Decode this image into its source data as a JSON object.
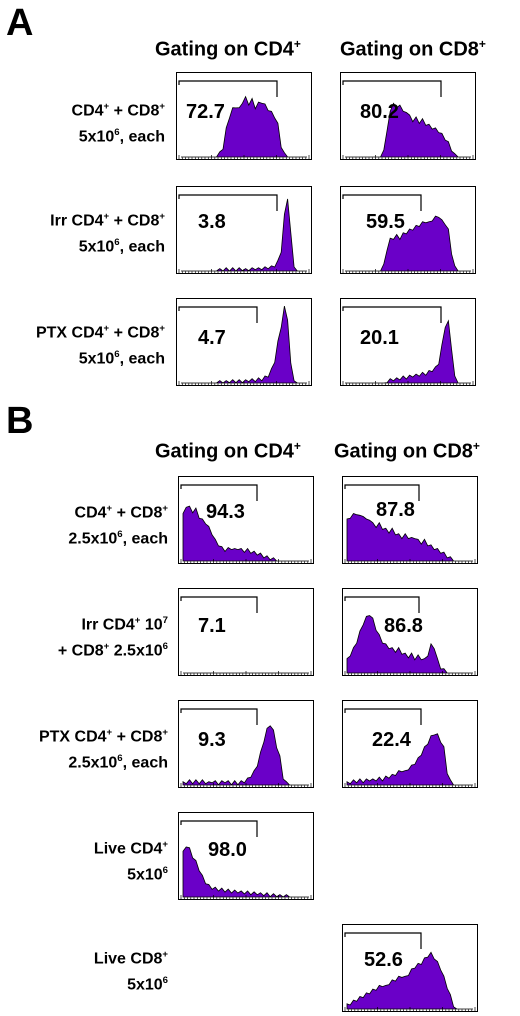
{
  "panels": [
    {
      "letter": "A",
      "col_heads": [
        {
          "text": "Gating on CD4",
          "sup": "+"
        },
        {
          "text": "Gating on CD8",
          "sup": "+"
        }
      ],
      "rows": [
        {
          "line1": [
            {
              "t": "CD4"
            },
            {
              "s": "+"
            },
            {
              "t": " + CD8"
            },
            {
              "s": "+"
            }
          ],
          "line2": [
            {
              "t": "5x10"
            },
            {
              "s": "6"
            },
            {
              "t": ", each"
            }
          ]
        },
        {
          "line1": [
            {
              "t": "Irr CD4"
            },
            {
              "s": "+"
            },
            {
              "t": " + CD8"
            },
            {
              "s": "+"
            }
          ],
          "line2": [
            {
              "t": "5x10"
            },
            {
              "s": "6"
            },
            {
              "t": ", each"
            }
          ]
        },
        {
          "line1": [
            {
              "t": "PTX CD4"
            },
            {
              "s": "+"
            },
            {
              "t": " + CD8"
            },
            {
              "s": "+"
            }
          ],
          "line2": [
            {
              "t": "5x10"
            },
            {
              "s": "6"
            },
            {
              "t": ", each"
            }
          ]
        }
      ]
    },
    {
      "letter": "B",
      "col_heads": [
        {
          "text": "Gating on CD4",
          "sup": "+"
        },
        {
          "text": "Gating on CD8",
          "sup": "+"
        }
      ],
      "rows": [
        {
          "line1": [
            {
              "t": "CD4"
            },
            {
              "s": "+"
            },
            {
              "t": " + CD8"
            },
            {
              "s": "+"
            }
          ],
          "line2": [
            {
              "t": "2.5x10"
            },
            {
              "s": "6"
            },
            {
              "t": ", each"
            }
          ]
        },
        {
          "line1": [
            {
              "t": "Irr CD4"
            },
            {
              "s": "+"
            },
            {
              "t": " 10"
            },
            {
              "s": "7"
            }
          ],
          "line2": [
            {
              "t": "+ CD8"
            },
            {
              "s": "+"
            },
            {
              "t": " 2.5x10"
            },
            {
              "s": "6"
            }
          ]
        },
        {
          "line1": [
            {
              "t": "PTX CD4"
            },
            {
              "s": "+"
            },
            {
              "t": " + CD8"
            },
            {
              "s": "+"
            }
          ],
          "line2": [
            {
              "t": "2.5x10"
            },
            {
              "s": "6"
            },
            {
              "t": ", each"
            }
          ]
        },
        {
          "line1": [
            {
              "t": "Live CD4"
            },
            {
              "s": "+"
            }
          ],
          "line2": [
            {
              "t": "5x10"
            },
            {
              "s": "6"
            }
          ]
        },
        {
          "line1": [
            {
              "t": "Live CD8"
            },
            {
              "s": "+"
            }
          ],
          "line2": [
            {
              "t": "5x10"
            },
            {
              "s": "6"
            }
          ]
        }
      ]
    }
  ],
  "colors": {
    "fill": "#6a00c8",
    "stroke": "#000000"
  },
  "chart_data": [
    {
      "panel": "A",
      "row": 0,
      "col": 0,
      "type": "area",
      "gate_percent": 72.7,
      "series": [
        0,
        0,
        0,
        0,
        0,
        0,
        0,
        0,
        0,
        0,
        0,
        0,
        4,
        10,
        30,
        44,
        52,
        55,
        52,
        60,
        64,
        58,
        62,
        54,
        58,
        60,
        56,
        52,
        48,
        44,
        35,
        12,
        3,
        0,
        0,
        0,
        0,
        0,
        0,
        0
      ]
    },
    {
      "panel": "A",
      "row": 0,
      "col": 1,
      "type": "area",
      "gate_percent": 80.2,
      "series": [
        0,
        0,
        0,
        0,
        0,
        0,
        0,
        0,
        0,
        0,
        0,
        0,
        6,
        30,
        48,
        60,
        52,
        58,
        48,
        50,
        44,
        40,
        42,
        38,
        40,
        36,
        34,
        32,
        30,
        28,
        24,
        20,
        15,
        8,
        2,
        0,
        0,
        0,
        0,
        0
      ]
    },
    {
      "panel": "A",
      "row": 1,
      "col": 0,
      "type": "area",
      "gate_percent": 3.8,
      "series": [
        0,
        0,
        0,
        0,
        0,
        0,
        0,
        0,
        0,
        0,
        0,
        0,
        1,
        1,
        2,
        1,
        2,
        1,
        2,
        2,
        1,
        2,
        2,
        3,
        2,
        3,
        3,
        4,
        4,
        6,
        10,
        22,
        60,
        80,
        40,
        6,
        0,
        0,
        0,
        0
      ]
    },
    {
      "panel": "A",
      "row": 1,
      "col": 1,
      "type": "area",
      "gate_percent": 59.5,
      "series": [
        0,
        0,
        0,
        0,
        0,
        0,
        0,
        0,
        0,
        0,
        0,
        0,
        6,
        24,
        34,
        36,
        38,
        36,
        40,
        42,
        44,
        46,
        48,
        50,
        52,
        54,
        52,
        56,
        58,
        60,
        54,
        52,
        44,
        20,
        4,
        0,
        0,
        0,
        0,
        0
      ]
    },
    {
      "panel": "A",
      "row": 2,
      "col": 0,
      "type": "area",
      "gate_percent": 4.7,
      "series": [
        0,
        0,
        0,
        0,
        0,
        0,
        0,
        0,
        0,
        0,
        0,
        0,
        1,
        1,
        1,
        2,
        2,
        2,
        2,
        2,
        2,
        3,
        3,
        3,
        4,
        4,
        6,
        8,
        14,
        24,
        44,
        62,
        82,
        70,
        20,
        4,
        0,
        0,
        0,
        0
      ]
    },
    {
      "panel": "A",
      "row": 2,
      "col": 1,
      "type": "area",
      "gate_percent": 20.1,
      "series": [
        0,
        0,
        0,
        0,
        0,
        0,
        0,
        0,
        0,
        0,
        0,
        0,
        0,
        2,
        3,
        4,
        4,
        5,
        6,
        6,
        7,
        8,
        8,
        9,
        10,
        10,
        12,
        14,
        16,
        22,
        40,
        62,
        66,
        38,
        6,
        0,
        0,
        0,
        0,
        0
      ]
    },
    {
      "panel": "B",
      "row": 0,
      "col": 0,
      "type": "area",
      "gate_percent": 94.3,
      "series": [
        50,
        60,
        58,
        54,
        56,
        48,
        44,
        42,
        36,
        30,
        22,
        18,
        14,
        12,
        13,
        14,
        12,
        14,
        12,
        11,
        12,
        10,
        9,
        8,
        7,
        5,
        4,
        3,
        2,
        1,
        0,
        0,
        0,
        0,
        0,
        0,
        0,
        0,
        0,
        0
      ]
    },
    {
      "panel": "B",
      "row": 0,
      "col": 1,
      "type": "area",
      "gate_percent": 87.8,
      "series": [
        44,
        48,
        50,
        52,
        48,
        50,
        44,
        46,
        40,
        38,
        40,
        36,
        34,
        32,
        34,
        30,
        28,
        26,
        28,
        26,
        24,
        26,
        22,
        20,
        22,
        18,
        16,
        14,
        12,
        10,
        8,
        5,
        3,
        1,
        0,
        0,
        0,
        0,
        0,
        0
      ]
    },
    {
      "panel": "B",
      "row": 1,
      "col": 0,
      "type": "area",
      "gate_percent": 7.1,
      "series": [
        0,
        0,
        0,
        0,
        0,
        0,
        0,
        0,
        0,
        0,
        0,
        0,
        0,
        0,
        0,
        0,
        0,
        0,
        0,
        0,
        0,
        0,
        0,
        0,
        0,
        0,
        0,
        0,
        0,
        0,
        0,
        0,
        0,
        0,
        0,
        0,
        0,
        0,
        0,
        0
      ]
    },
    {
      "panel": "B",
      "row": 1,
      "col": 1,
      "type": "area",
      "gate_percent": 86.8,
      "series": [
        14,
        20,
        26,
        34,
        44,
        54,
        60,
        64,
        58,
        48,
        40,
        34,
        30,
        28,
        26,
        24,
        26,
        22,
        20,
        18,
        20,
        16,
        18,
        16,
        14,
        20,
        30,
        28,
        14,
        6,
        3,
        1,
        0,
        0,
        0,
        0,
        0,
        0,
        0,
        0
      ]
    },
    {
      "panel": "B",
      "row": 2,
      "col": 0,
      "type": "area",
      "gate_percent": 9.3,
      "series": [
        2,
        3,
        4,
        3,
        4,
        3,
        4,
        3,
        2,
        4,
        3,
        2,
        3,
        4,
        3,
        2,
        3,
        2,
        3,
        4,
        6,
        10,
        14,
        22,
        34,
        48,
        60,
        66,
        58,
        42,
        30,
        8,
        2,
        0,
        0,
        0,
        0,
        0,
        0,
        0
      ]
    },
    {
      "panel": "B",
      "row": 2,
      "col": 1,
      "type": "area",
      "gate_percent": 22.4,
      "series": [
        2,
        3,
        4,
        4,
        5,
        4,
        5,
        6,
        5,
        6,
        7,
        6,
        8,
        9,
        10,
        12,
        14,
        16,
        14,
        18,
        20,
        24,
        28,
        34,
        40,
        46,
        52,
        56,
        54,
        48,
        40,
        14,
        4,
        0,
        0,
        0,
        0,
        0,
        0,
        0
      ]
    },
    {
      "panel": "B",
      "row": 3,
      "col": 0,
      "type": "area",
      "gate_percent": 98.0,
      "series": [
        48,
        56,
        52,
        44,
        38,
        30,
        22,
        16,
        12,
        10,
        9,
        8,
        8,
        7,
        7,
        6,
        6,
        6,
        5,
        5,
        5,
        4,
        4,
        4,
        3,
        3,
        3,
        2,
        2,
        2,
        1,
        1,
        1,
        0,
        0,
        0,
        0,
        0,
        0,
        0
      ]
    },
    {
      "panel": "B",
      "row": 4,
      "col": 1,
      "type": "area",
      "gate_percent": 52.6,
      "series": [
        4,
        6,
        8,
        10,
        12,
        14,
        16,
        18,
        20,
        22,
        24,
        26,
        24,
        28,
        30,
        32,
        34,
        36,
        34,
        38,
        42,
        46,
        48,
        50,
        54,
        58,
        60,
        56,
        50,
        44,
        34,
        24,
        14,
        4,
        0,
        0,
        0,
        0,
        0,
        0
      ]
    }
  ],
  "labels": {
    "A": {
      "r0c0": "72.7",
      "r0c1": "80.2",
      "r1c0": "3.8",
      "r1c1": "59.5",
      "r2c0": "4.7",
      "r2c1": "20.1"
    },
    "B": {
      "r0c0": "94.3",
      "r0c1": "87.8",
      "r1c0": "7.1",
      "r1c1": "86.8",
      "r2c0": "9.3",
      "r2c1": "22.4",
      "r3c0": "98.0",
      "r4c1": "52.6"
    }
  }
}
